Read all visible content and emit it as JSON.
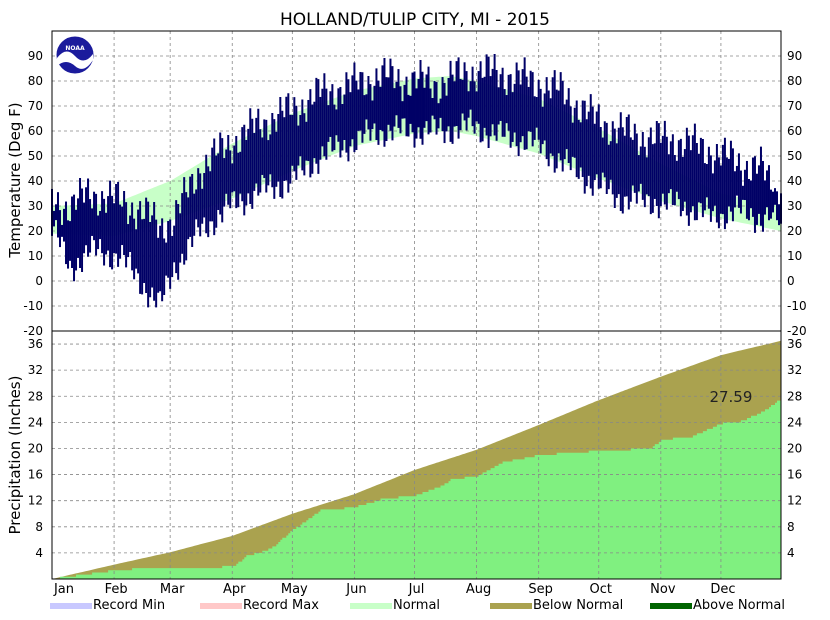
{
  "chart_data": {
    "title": "HOLLAND/TULIP CITY, MI - 2015",
    "months": [
      "Jan",
      "Feb",
      "Mar",
      "Apr",
      "May",
      "Jun",
      "Jul",
      "Aug",
      "Sep",
      "Oct",
      "Nov",
      "Dec"
    ],
    "legend": [
      {
        "label": "Record Min",
        "color": "#c8c8ff"
      },
      {
        "label": "Record Max",
        "color": "#ffc8c8"
      },
      {
        "label": "Normal",
        "color": "#c8ffc8"
      },
      {
        "label": "Below Normal",
        "color": "#aaa24f"
      },
      {
        "label": "Above Normal",
        "color": "#006400"
      }
    ],
    "panels": [
      {
        "type": "line",
        "ylabel": "Temperature (Deg F)",
        "ylim": [
          -20,
          100
        ],
        "yticks": [
          -20,
          -10,
          0,
          10,
          20,
          30,
          40,
          50,
          60,
          70,
          80,
          90
        ],
        "grid": true,
        "normal_high_anchors": {
          "day": [
            1,
            32,
            60,
            91,
            121,
            152,
            182,
            200,
            213,
            244,
            274,
            305,
            335,
            365
          ],
          "value": [
            30,
            31,
            40,
            55,
            67,
            76,
            81,
            82,
            80,
            73,
            61,
            47,
            35,
            30
          ]
        },
        "normal_low_anchors": {
          "day": [
            1,
            32,
            60,
            91,
            121,
            152,
            182,
            200,
            213,
            244,
            274,
            305,
            335,
            365
          ],
          "value": [
            19,
            18,
            24,
            33,
            44,
            54,
            59,
            60,
            58,
            51,
            41,
            32,
            25,
            20
          ]
        },
        "observed_high_anchors": {
          "day": [
            1,
            10,
            20,
            35,
            45,
            55,
            62,
            75,
            90,
            105,
            120,
            135,
            150,
            165,
            180,
            195,
            210,
            225,
            240,
            255,
            270,
            285,
            300,
            315,
            330,
            345,
            355,
            365
          ],
          "value": [
            32,
            30,
            35,
            32,
            28,
            22,
            25,
            45,
            55,
            63,
            68,
            75,
            78,
            82,
            80,
            79,
            84,
            83,
            80,
            76,
            66,
            60,
            57,
            56,
            52,
            47,
            45,
            33
          ]
        },
        "observed_low_anchors": {
          "day": [
            1,
            10,
            20,
            35,
            45,
            55,
            62,
            75,
            90,
            105,
            120,
            135,
            150,
            165,
            180,
            195,
            210,
            225,
            240,
            255,
            270,
            285,
            300,
            315,
            330,
            345,
            355,
            365
          ],
          "value": [
            22,
            5,
            12,
            10,
            0,
            -10,
            5,
            20,
            30,
            36,
            40,
            50,
            55,
            60,
            60,
            60,
            62,
            58,
            56,
            48,
            40,
            33,
            32,
            30,
            26,
            28,
            25,
            26
          ]
        },
        "series_color": "#000066"
      },
      {
        "type": "area",
        "ylabel": "Precipitation (Inches)",
        "ylim": [
          0,
          38
        ],
        "yticks": [
          4,
          8,
          12,
          16,
          20,
          24,
          28,
          32,
          36
        ],
        "grid": true,
        "annotation": "27.59",
        "normal_cumulative": {
          "day": [
            1,
            32,
            60,
            91,
            121,
            152,
            182,
            213,
            244,
            274,
            305,
            335,
            365
          ],
          "value": [
            0,
            2.2,
            4.1,
            6.6,
            10.0,
            13.0,
            16.7,
            19.8,
            23.6,
            27.4,
            31.0,
            34.3,
            36.5
          ]
        },
        "observed_cumulative": {
          "day": [
            1,
            20,
            32,
            45,
            60,
            75,
            91,
            98,
            110,
            121,
            135,
            152,
            165,
            182,
            195,
            200,
            213,
            225,
            244,
            274,
            300,
            305,
            320,
            335,
            345,
            355,
            365
          ],
          "value": [
            0,
            0.8,
            1.3,
            1.6,
            1.6,
            1.7,
            1.9,
            3.5,
            4.6,
            7.5,
            10.5,
            11.0,
            12.2,
            12.8,
            14.2,
            15.2,
            15.8,
            17.8,
            19.0,
            19.6,
            20.0,
            21.3,
            21.8,
            23.8,
            24.2,
            25.5,
            27.59
          ]
        },
        "normal_color": "#aaa24f",
        "observed_color": "#80f080"
      }
    ]
  }
}
